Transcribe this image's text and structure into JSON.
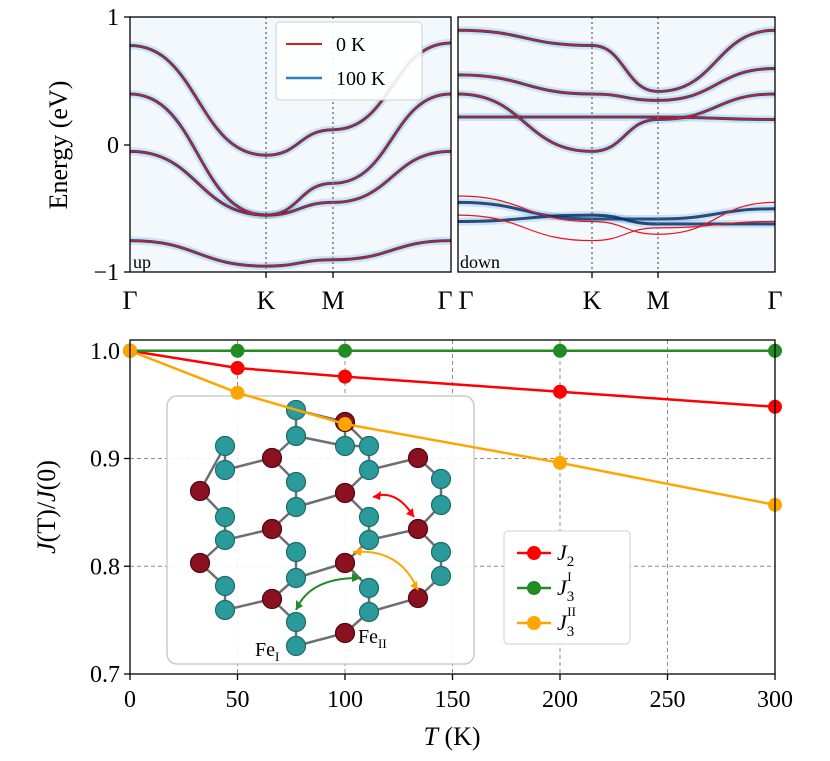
{
  "colors": {
    "zero_k": "#e8151b",
    "hundred_k": "#2e7fbf",
    "J2": "#ff0000",
    "J3I": "#228b22",
    "J3II": "#ffa500",
    "atom_teal": "#2a9a9a",
    "atom_red": "#8b1020",
    "band_dark": "#08306b"
  },
  "band_panels": {
    "ylabel": "Energy (eV)",
    "ylim": [
      -1,
      1
    ],
    "yticks": [
      "1",
      "0",
      "−1"
    ],
    "kpoint_labels": [
      "Γ",
      "K",
      "M",
      "Γ"
    ],
    "legend": [
      "0 K",
      "100 K"
    ],
    "left_label": "up",
    "right_label": "down"
  },
  "chart_data": [
    {
      "type": "heatmap",
      "panel": "up",
      "x": [
        "Γ",
        "K",
        "M",
        "Γ"
      ],
      "ylim": [
        -1,
        1
      ],
      "ylabel": "Energy (eV)",
      "series": [
        {
          "name": "0 K",
          "bands_eV_at_kpoints": [
            [
              0.78,
              -0.08,
              0.12,
              0.8
            ],
            [
              0.4,
              -0.55,
              -0.3,
              0.4
            ],
            [
              -0.05,
              -0.55,
              -0.45,
              -0.05
            ],
            [
              -0.75,
              -0.95,
              -0.9,
              -0.75
            ]
          ]
        },
        {
          "name": "100 K",
          "bands_eV_at_kpoints": [
            [
              0.78,
              -0.08,
              0.12,
              0.8
            ],
            [
              0.4,
              -0.55,
              -0.3,
              0.4
            ],
            [
              -0.05,
              -0.55,
              -0.45,
              -0.05
            ],
            [
              -0.75,
              -0.95,
              -0.9,
              -0.75
            ]
          ]
        }
      ]
    },
    {
      "type": "heatmap",
      "panel": "down",
      "x": [
        "Γ",
        "K",
        "M",
        "Γ"
      ],
      "ylim": [
        -1,
        1
      ],
      "ylabel": "",
      "series": [
        {
          "name": "0 K",
          "bands_eV_at_kpoints": [
            [
              0.9,
              0.78,
              0.42,
              0.9
            ],
            [
              0.55,
              0.4,
              0.35,
              0.6
            ],
            [
              0.4,
              -0.05,
              0.2,
              0.4
            ],
            [
              0.22,
              0.22,
              0.22,
              0.2
            ],
            [
              -0.4,
              -0.6,
              -0.7,
              -0.45
            ],
            [
              -0.55,
              -0.75,
              -0.65,
              -0.6
            ]
          ]
        },
        {
          "name": "100 K",
          "bands_eV_at_kpoints": [
            [
              0.9,
              0.78,
              0.42,
              0.9
            ],
            [
              0.55,
              0.4,
              0.35,
              0.6
            ],
            [
              0.4,
              -0.05,
              0.2,
              0.4
            ],
            [
              0.22,
              0.22,
              0.22,
              0.2
            ],
            [
              -0.45,
              -0.58,
              -0.58,
              -0.5
            ],
            [
              -0.6,
              -0.55,
              -0.62,
              -0.62
            ]
          ]
        }
      ]
    },
    {
      "type": "line",
      "xlabel": "T (K)",
      "ylabel": "J(T)/J(0)",
      "xlim": [
        0,
        300
      ],
      "ylim": [
        0.7,
        1.01
      ],
      "xticks": [
        0,
        50,
        100,
        150,
        200,
        250,
        300
      ],
      "yticks": [
        0.7,
        0.8,
        0.9,
        1.0
      ],
      "grid": true,
      "legend_position": "center-right",
      "x": [
        0,
        50,
        100,
        200,
        300
      ],
      "series": [
        {
          "name": "J2",
          "values": [
            1.0,
            0.984,
            0.976,
            0.962,
            0.948
          ]
        },
        {
          "name": "J3 I",
          "values": [
            1.0,
            1.0,
            1.0,
            1.0,
            1.0
          ]
        },
        {
          "name": "J3 II",
          "values": [
            1.0,
            0.961,
            0.932,
            0.896,
            0.857
          ]
        }
      ]
    }
  ],
  "bottom": {
    "xtick_labels": [
      "0",
      "50",
      "100",
      "150",
      "200",
      "250",
      "300"
    ],
    "ytick_labels": [
      "0.7",
      "0.8",
      "0.9",
      "1.0"
    ],
    "inset_labels": {
      "fe1_base": "Fe",
      "fe1_sub": "I",
      "fe2_base": "Fe",
      "fe2_sub": "II"
    },
    "legend": [
      {
        "base": "J",
        "sub": "2",
        "sup": ""
      },
      {
        "base": "J",
        "sub": "3",
        "sup": "I"
      },
      {
        "base": "J",
        "sub": "3",
        "sup": "II"
      }
    ]
  }
}
